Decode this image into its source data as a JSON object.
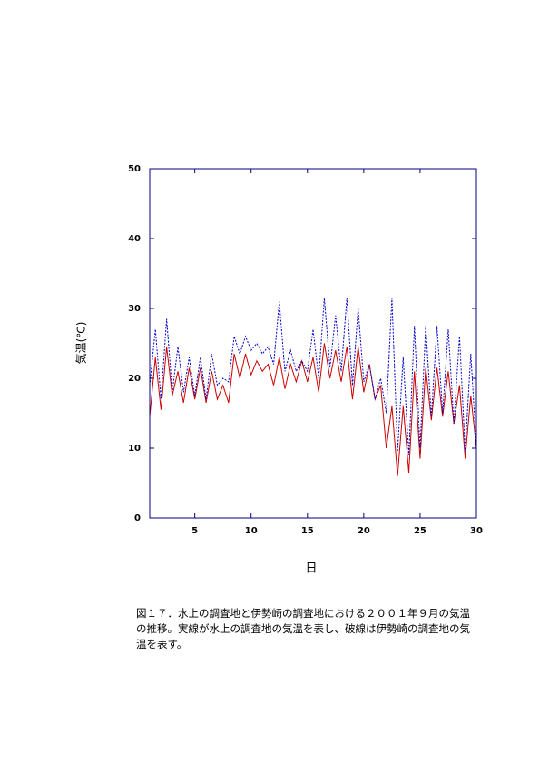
{
  "chart_data": {
    "type": "line",
    "xlabel": "日",
    "ylabel": "気温(℃)",
    "x": [
      1,
      1.5,
      2,
      2.5,
      3,
      3.5,
      4,
      4.5,
      5,
      5.5,
      6,
      6.5,
      7,
      7.5,
      8,
      8.5,
      9,
      9.5,
      10,
      10.5,
      11,
      11.5,
      12,
      12.5,
      13,
      13.5,
      14,
      14.5,
      15,
      15.5,
      16,
      16.5,
      17,
      17.5,
      18,
      18.5,
      19,
      19.5,
      20,
      20.5,
      21,
      21.5,
      22,
      22.5,
      23,
      23.5,
      24,
      24.5,
      25,
      25.5,
      26,
      26.5,
      27,
      27.5,
      28,
      28.5,
      29,
      29.5,
      30
    ],
    "series": [
      {
        "color": "#cc0000",
        "style": "solid",
        "values": [
          14.5,
          23,
          15.5,
          24.5,
          17.5,
          21,
          16.5,
          21.5,
          17,
          21.5,
          16.5,
          21,
          17,
          19,
          16.5,
          23.5,
          20,
          23.5,
          20.5,
          22.5,
          21,
          22,
          19,
          23,
          18.5,
          22,
          19.5,
          22.5,
          19.5,
          23,
          18,
          25,
          20,
          24,
          19.5,
          24.5,
          17,
          24.5,
          18,
          22,
          17,
          19,
          10,
          16,
          6,
          16,
          6.5,
          21,
          8.5,
          21.5,
          14,
          21.5,
          14.5,
          21,
          13.5,
          19,
          8.5,
          17.5,
          10
        ]
      },
      {
        "color": "#0000cc",
        "style": "dashed",
        "values": [
          19,
          27,
          17,
          28.5,
          18,
          24.5,
          18,
          23,
          17.5,
          23,
          17,
          23.5,
          19,
          20,
          19.5,
          26,
          23.5,
          26,
          24,
          25,
          23.5,
          24.5,
          22,
          31,
          21,
          24,
          21,
          22.5,
          21,
          27,
          20,
          31.5,
          21.5,
          29,
          21,
          31.5,
          19,
          30,
          19.5,
          22,
          17,
          20,
          15,
          31.5,
          9.5,
          23,
          9,
          27.5,
          10,
          27.5,
          14.5,
          27.5,
          15,
          27,
          13.5,
          26,
          9.5,
          23.5,
          10
        ]
      }
    ],
    "xlim": [
      1,
      30
    ],
    "xticks": [
      5,
      10,
      15,
      20,
      25,
      30
    ],
    "ylim": [
      0,
      50
    ],
    "yticks": [
      0,
      10,
      20,
      30,
      40,
      50
    ],
    "frame_color": "#000080"
  },
  "caption": {
    "lines": [
      "図１７．水上の調査地と伊勢崎の調査地における２００１年９月の気温",
      "の推移。実線が水上の調査地の気温を表し、破線は伊勢崎の調査地の気",
      "温を表す。"
    ]
  }
}
